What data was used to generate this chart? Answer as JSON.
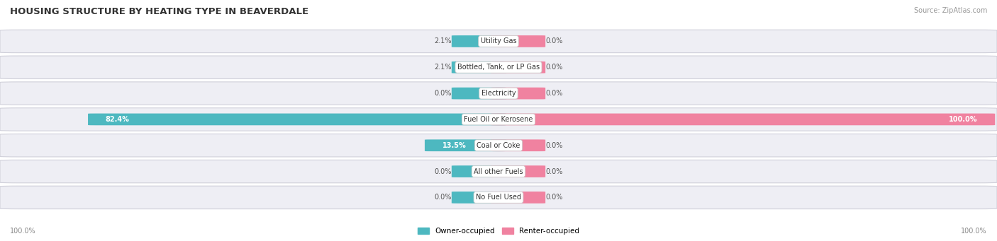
{
  "title": "HOUSING STRUCTURE BY HEATING TYPE IN BEAVERDALE",
  "source": "Source: ZipAtlas.com",
  "categories": [
    "Utility Gas",
    "Bottled, Tank, or LP Gas",
    "Electricity",
    "Fuel Oil or Kerosene",
    "Coal or Coke",
    "All other Fuels",
    "No Fuel Used"
  ],
  "owner_pct": [
    2.1,
    2.1,
    0.0,
    82.4,
    13.5,
    0.0,
    0.0
  ],
  "renter_pct": [
    0.0,
    0.0,
    0.0,
    100.0,
    0.0,
    0.0,
    0.0
  ],
  "owner_color": "#4DB8C0",
  "renter_color": "#F082A0",
  "row_bg_color": "#EEEEF4",
  "title_color": "#333333",
  "source_color": "#999999",
  "label_color": "#333333",
  "pct_label_color": "#555555",
  "pct_label_white": "#FFFFFF",
  "max_value": 100.0,
  "fig_width": 14.06,
  "fig_height": 3.41,
  "axis_label_left": "100.0%",
  "axis_label_right": "100.0%",
  "stub_bar_width": 0.04,
  "legend_owner": "Owner-occupied",
  "legend_renter": "Renter-occupied"
}
